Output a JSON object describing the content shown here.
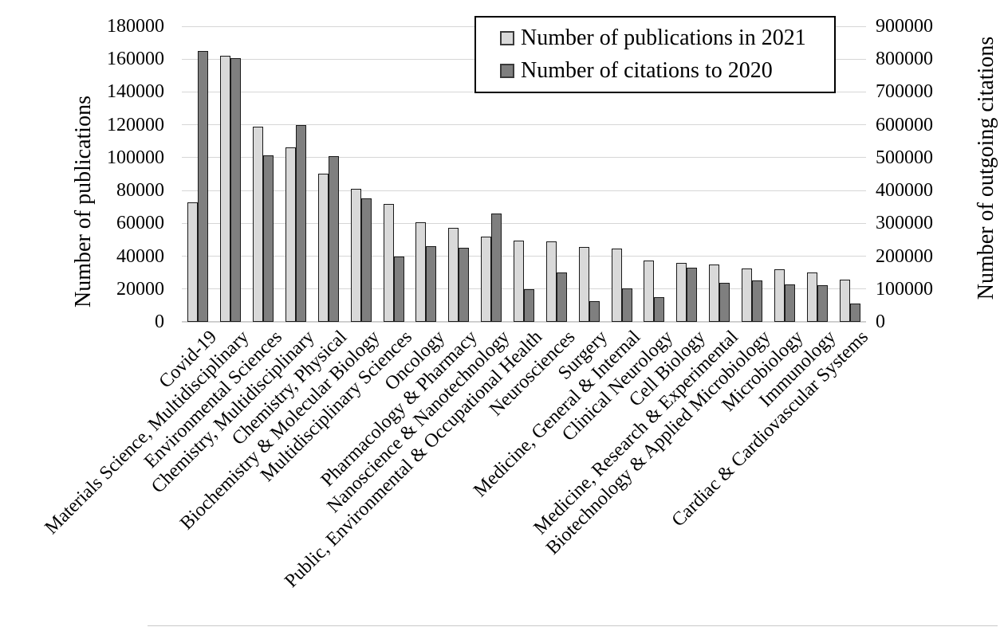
{
  "chart_data": {
    "type": "bar",
    "title": "",
    "grid": true,
    "legend_position": "top-center-inside",
    "gridline_color": "#d6d6d6",
    "bar_border_color": "#1a1a1a",
    "categories": [
      "Covid-19",
      "Materials Science, Multidisciplinary",
      "Environmental Sciences",
      "Chemistry, Multidisciplinary",
      "Chemistry, Physical",
      "Biochemistry & Molecular Biology",
      "Multidisciplinary Sciences",
      "Oncology",
      "Pharmacology & Pharmacy",
      "Nanoscience & Nanotechnology",
      "Public, Environmental & Occupational Health",
      "Neurosciences",
      "Surgery",
      "Medicine, General & Internal",
      "Clinical Neurology",
      "Cell Biology",
      "Medicine, Research & Experimental",
      "Biotechnology & Applied Microbiology",
      "Microbiology",
      "Immunology",
      "Cardiac & Cardiovascular Systems"
    ],
    "series": [
      {
        "name": "Number of publications in 2021",
        "axis": "left",
        "color": "#d9d9d9",
        "values": [
          73000,
          162000,
          119000,
          106500,
          90500,
          81000,
          71800,
          60500,
          57500,
          52000,
          49500,
          49200,
          45800,
          44500,
          37300,
          36100,
          35100,
          32400,
          32000,
          30000,
          25900
        ]
      },
      {
        "name": "Number of citations to 2020",
        "axis": "right",
        "color": "#7f7f7f",
        "values": [
          826000,
          803000,
          508000,
          600000,
          505000,
          376000,
          200000,
          230000,
          226000,
          330000,
          100000,
          151000,
          63000,
          101000,
          75000,
          166000,
          118000,
          126000,
          113000,
          112000,
          57000
        ]
      }
    ],
    "left_axis": {
      "label": "Number of publications",
      "min": 0,
      "max": 180000,
      "tick_step": 20000,
      "tick_labels": [
        "0",
        "20000",
        "40000",
        "60000",
        "80000",
        "100000",
        "120000",
        "140000",
        "160000",
        "180000"
      ]
    },
    "right_axis": {
      "label": "Number of outgoing citations",
      "min": 0,
      "max": 900000,
      "tick_step": 100000,
      "tick_labels": [
        "0",
        "100000",
        "200000",
        "300000",
        "400000",
        "500000",
        "600000",
        "700000",
        "800000",
        "900000"
      ]
    }
  }
}
